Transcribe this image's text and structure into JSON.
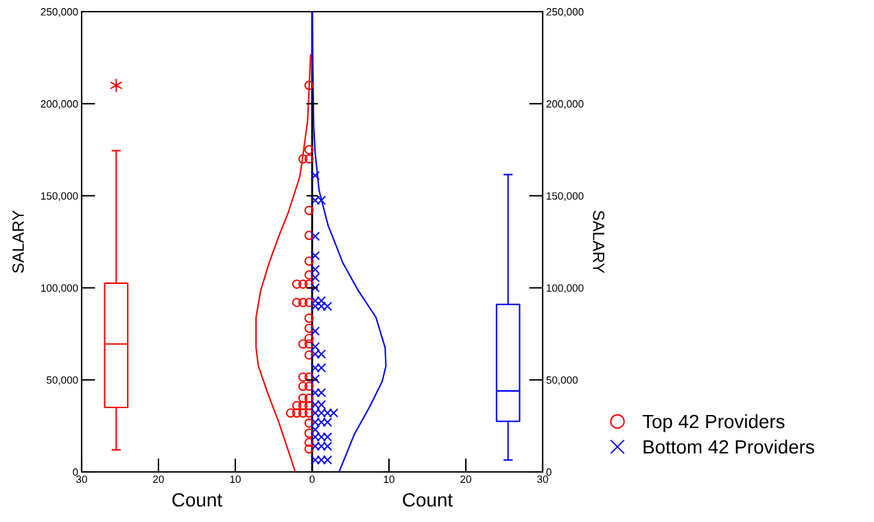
{
  "chart_data": {
    "type": "scatter",
    "xlabel": "Count",
    "ylabel": "SALARY",
    "y2label": "SALARY",
    "annotations": [
      "Count"
    ],
    "xlim": [
      -30,
      30
    ],
    "xticks": [
      {
        "value": -30,
        "label": "30"
      },
      {
        "value": -20,
        "label": "20"
      },
      {
        "value": -10,
        "label": "10"
      },
      0,
      10,
      20,
      30
    ],
    "ylim": [
      0,
      250000
    ],
    "yticks": [
      0,
      {
        "value": 50000,
        "label": "50,000"
      },
      {
        "value": 100000,
        "label": "100,000"
      },
      {
        "value": 150000,
        "label": "150,000"
      },
      {
        "value": 200000,
        "label": "200,000"
      },
      {
        "value": 250000,
        "label": "250,000"
      }
    ],
    "y2lim": [
      0,
      250000
    ],
    "y2ticks": [
      0,
      {
        "value": 50000,
        "label": "50,000"
      },
      {
        "value": 100000,
        "label": "100,000"
      },
      {
        "value": 150000,
        "label": "150,000"
      },
      {
        "value": 200000,
        "label": "200,000"
      },
      {
        "value": 250000,
        "label": "250,000"
      }
    ],
    "ref_lines": [
      {
        "axis": "x",
        "value": 0,
        "color": "#000000"
      }
    ],
    "legend": "right",
    "series": [
      {
        "name": "Top 42 Providers",
        "marker": "circle",
        "color": "#ff0000",
        "x": [
          -0.4,
          -0.4,
          -0.4,
          -1.2,
          -0.4,
          -0.4,
          -0.4,
          -0.4,
          -0.4,
          -1.2,
          -2.0,
          -0.4,
          -1.2,
          -2.0,
          -0.4,
          -0.4,
          -0.4,
          -0.4,
          -1.2,
          -0.4,
          -0.4,
          -1.2,
          -0.4,
          -1.2,
          -0.4,
          -1.2,
          -0.4,
          -1.2,
          -2.0,
          -0.4,
          -1.2,
          -2.0,
          -2.8,
          -0.4,
          -0.4,
          -0.4,
          -0.4
        ],
        "values": [
          210000,
          175000,
          170000,
          170000,
          142000,
          128500,
          114500,
          107000,
          102000,
          102000,
          102000,
          92000,
          92000,
          92000,
          83500,
          78000,
          72500,
          69500,
          69500,
          63500,
          51500,
          51500,
          46500,
          46500,
          40000,
          40000,
          36000,
          36000,
          36000,
          32000,
          32000,
          32000,
          32000,
          26500,
          21000,
          16000,
          12500
        ]
      },
      {
        "name": "Bottom 42 Providers",
        "marker": "cross",
        "color": "#0000ff",
        "x": [
          0.4,
          0.4,
          1.2,
          0.4,
          0.4,
          0.4,
          0.4,
          0.4,
          0.4,
          1.2,
          0.4,
          1.2,
          2.0,
          0.4,
          0.4,
          0.4,
          1.2,
          0.4,
          1.2,
          0.4,
          0.4,
          1.2,
          0.4,
          1.2,
          0.4,
          1.2,
          2.0,
          2.8,
          0.4,
          1.2,
          2.0,
          0.4,
          0.4,
          1.2,
          2.0,
          0.4,
          1.2,
          2.0,
          0.4,
          1.2,
          2.0
        ],
        "values": [
          161000,
          147500,
          147500,
          128000,
          117500,
          110000,
          105500,
          100000,
          93000,
          93000,
          90000,
          90000,
          90000,
          76500,
          68000,
          64000,
          64000,
          56500,
          56500,
          50500,
          43000,
          43000,
          36500,
          36500,
          32000,
          32000,
          32000,
          32000,
          27000,
          27000,
          27000,
          23000,
          19000,
          19000,
          19000,
          14000,
          14000,
          14000,
          6500,
          6500,
          6500
        ]
      },
      {
        "type": "line",
        "color": "#ff0000",
        "x": [
          -0.2,
          -0.45,
          -0.6,
          -1.2,
          -1.6,
          -3.1,
          -4.3,
          -5.6,
          -6.7,
          -7.3,
          -7.3,
          -7.0,
          -5.8,
          -4.3,
          -3.1,
          -2.2
        ],
        "values": [
          226500,
          203000,
          190500,
          172000,
          160500,
          141000,
          128500,
          113500,
          98500,
          84000,
          67500,
          57500,
          43000,
          26500,
          11500,
          0
        ]
      },
      {
        "type": "line",
        "color": "#0000ff",
        "x": [
          0,
          0.2,
          0.4,
          0.9,
          2.1,
          2.5,
          4.0,
          6.0,
          8.3,
          9.5,
          9.6,
          9.1,
          7.5,
          5.5,
          3.5
        ],
        "values": [
          250000,
          188000,
          173000,
          153000,
          133500,
          129500,
          113500,
          98500,
          84000,
          67500,
          57500,
          49000,
          35500,
          20500,
          0
        ]
      },
      {
        "type": "box",
        "color": "#ff0000",
        "x": [
          -25.5
        ],
        "boxes": [
          {
            "low": 12000,
            "q1": 35000,
            "median": 69500,
            "q3": 102500,
            "high": 174500,
            "outliers": [
              210000
            ]
          }
        ]
      },
      {
        "type": "box",
        "color": "#0000ff",
        "x": [
          25.5
        ],
        "boxes": [
          {
            "low": 6500,
            "q1": 27500,
            "median": 44000,
            "q3": 91000,
            "high": 161500
          }
        ]
      }
    ]
  }
}
